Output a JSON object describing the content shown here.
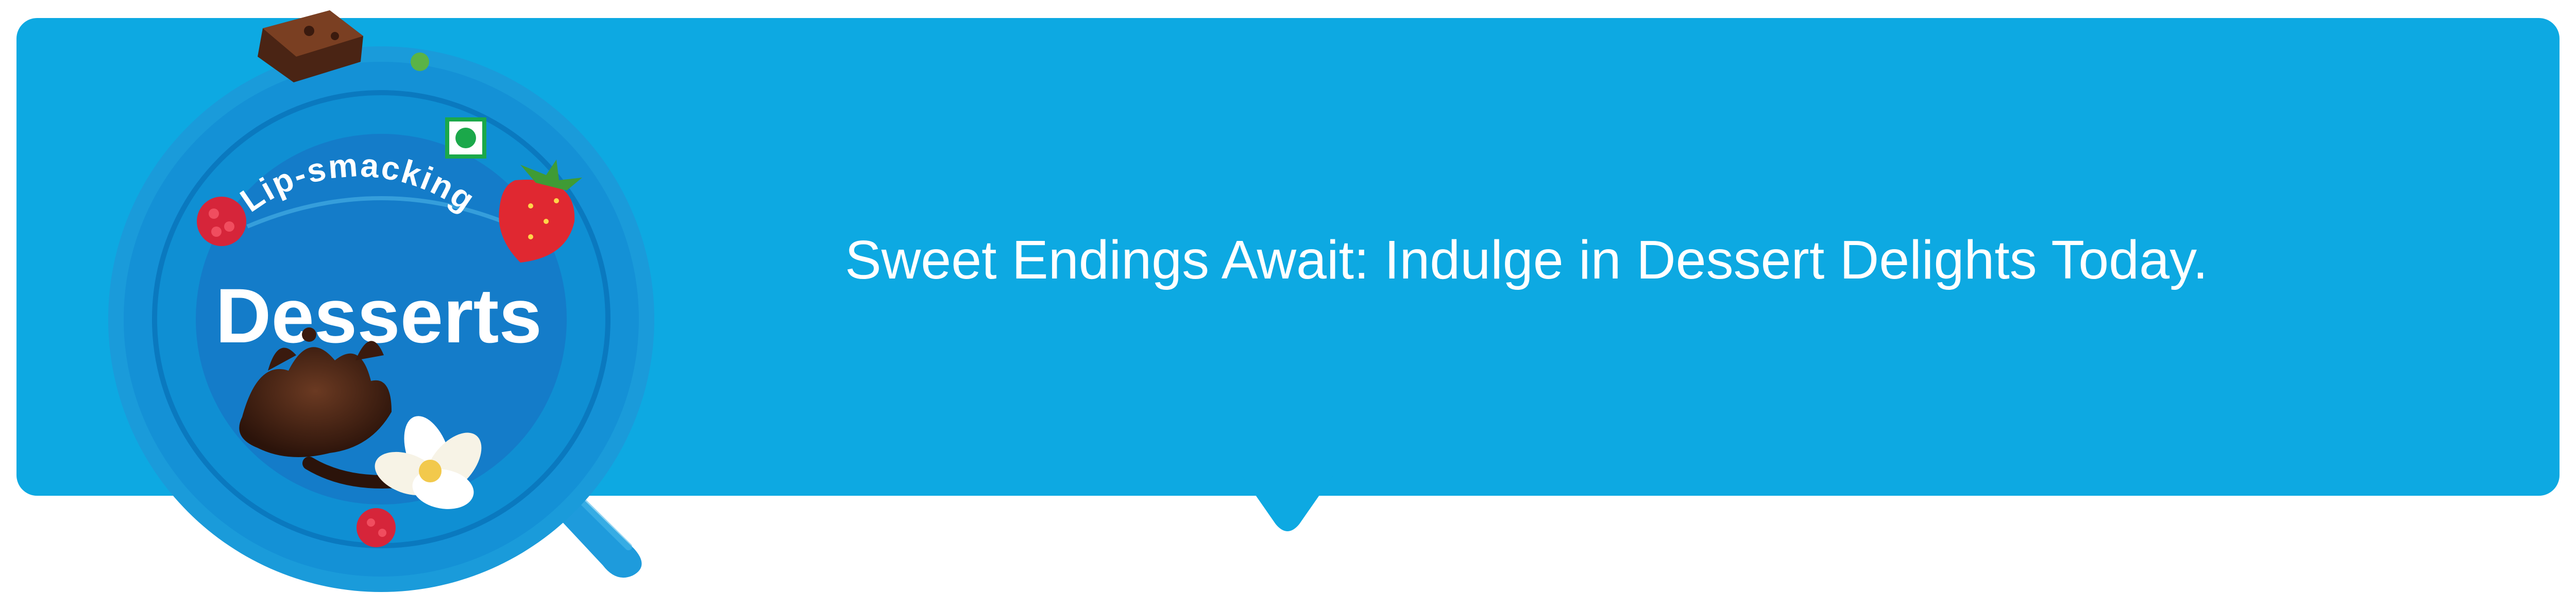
{
  "colors": {
    "accent": "#0DA9E2",
    "badge_ring": "#1A9BDA",
    "badge_inner": "#0F8FD3",
    "badge_center": "#147CC9",
    "veg_mark": "#1BA84A"
  },
  "badge": {
    "subtitle": "Lip-smacking",
    "title": "Desserts",
    "icons": [
      "brownie-icon",
      "strawberry-icon",
      "raspberry-icon",
      "chocolate-splash-icon",
      "vanilla-flower-icon",
      "veg-mark-icon",
      "spoon-icon"
    ]
  },
  "banner": {
    "tagline": "Sweet Endings Await: Indulge in Dessert Delights Today."
  }
}
